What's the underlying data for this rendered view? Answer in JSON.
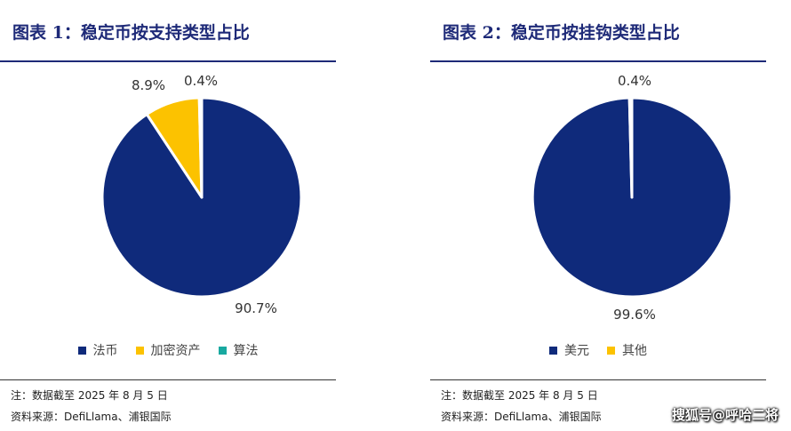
{
  "chart_data": [
    {
      "type": "pie",
      "title": "图表 1：稳定币按支持类型占比",
      "categories": [
        "法币",
        "加密资产",
        "算法"
      ],
      "values": [
        90.7,
        8.9,
        0.4
      ],
      "labels": [
        "90.7%",
        "8.9%",
        "0.4%"
      ],
      "colors": [
        "#0f2a7b",
        "#fcc200",
        "#18a9a0"
      ],
      "legend_position": "bottom",
      "note": "注：数据截至 2025 年 8 月 5 日",
      "source": "资料来源：DefiLlama、浦银国际"
    },
    {
      "type": "pie",
      "title": "图表 2：稳定币按挂钩类型占比",
      "categories": [
        "美元",
        "其他"
      ],
      "values": [
        99.6,
        0.4
      ],
      "labels": [
        "99.6%",
        "0.4%"
      ],
      "colors": [
        "#0f2a7b",
        "#fcc200"
      ],
      "legend_position": "bottom",
      "note": "注：数据截至 2025 年 8 月 5 日",
      "source": "资料来源：DefiLlama、浦银国际"
    }
  ],
  "watermark": "搜狐号@呼哈二将"
}
